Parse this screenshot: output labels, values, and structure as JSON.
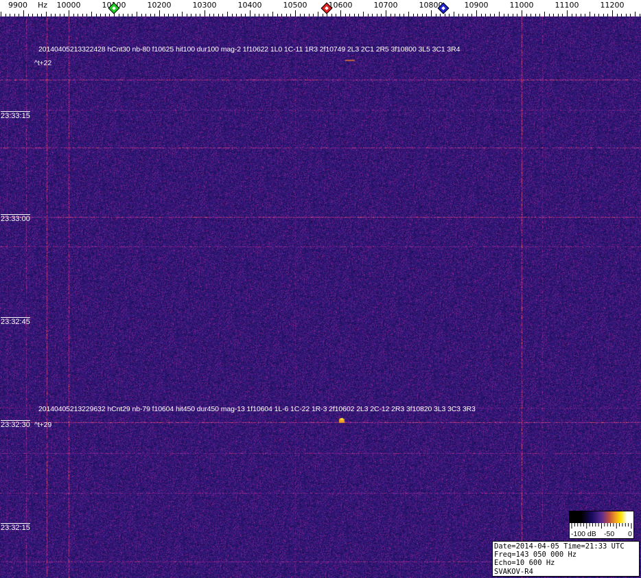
{
  "chart_data": {
    "type": "heatmap",
    "xlabel": "Hz",
    "x_ticks": [
      9900,
      10000,
      10100,
      10200,
      10300,
      10400,
      10500,
      10600,
      10700,
      10800,
      10900,
      11000,
      11100,
      11200
    ],
    "xlim": [
      9850,
      11260
    ],
    "y_ticks": [
      "23:33:15",
      "23:33:00",
      "23:32:45",
      "23:32:30",
      "23:32:15"
    ],
    "markers": [
      {
        "color": "#22cc22",
        "freq": 10100
      },
      {
        "color": "#dd2222",
        "freq": 10570
      },
      {
        "color": "#2222cc",
        "freq": 10828
      }
    ],
    "annotations": [
      {
        "text": "20140405213322428 hCnt30 nb-80 f10625 hit100 dur100 mag-2 1f10622 1L0 1C-11 1R3 2f10749 2L3 2C1 2R5 3f10800 3L5 3C1 3R4",
        "offset": "^t+22"
      },
      {
        "text": "20140405213229632 hCnt29 nb-79 f10604 hit450 dur450 mag-13 1f10604 1L-6 1C-22 1R-3 2f10602 2L3 2C-12 2R3 3f10820 3L3 3C3 3R3",
        "offset": "^t+29"
      }
    ],
    "colorbar": {
      "labels": [
        "-100 dB",
        "-50",
        "0"
      ],
      "range": [
        -100,
        0
      ],
      "colors": [
        "#000000",
        "#1a0a60",
        "#5a2a90",
        "#f0a020",
        "#ffe000",
        "#ffffff"
      ]
    },
    "colors": {
      "background": "#2a1470"
    }
  },
  "info": {
    "line1": "Date=2014-04-05 Time=21:33 UTC",
    "line2": "Freq=143 050 000 Hz",
    "line3": "Echo=10 600 Hz",
    "line4": "SVAKOV-R4"
  }
}
